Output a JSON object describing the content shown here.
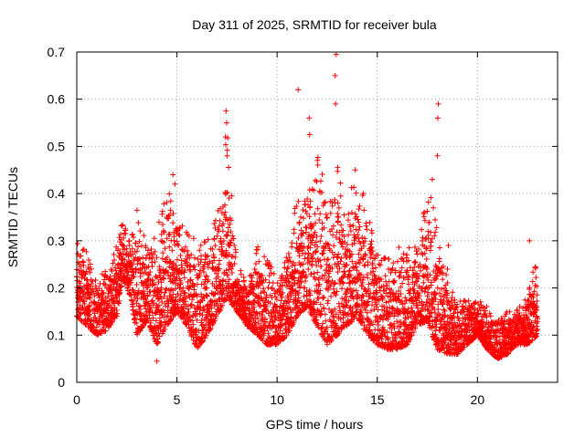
{
  "chart_data": {
    "type": "scatter",
    "title": "Day 311 of 2025, SRMTID for receiver bula",
    "xlabel": "GPS time / hours",
    "ylabel": "SRMTID / TECUs",
    "xlim": [
      0,
      24
    ],
    "ylim": [
      0,
      0.7
    ],
    "xticks": [
      0,
      5,
      10,
      15,
      20
    ],
    "yticks": [
      0,
      0.1,
      0.2,
      0.3,
      0.4,
      0.5,
      0.6,
      0.7
    ],
    "xtick_labels": [
      "0",
      "5",
      "10",
      "15",
      "20"
    ],
    "ytick_labels": [
      "0",
      "0.1",
      "0.2",
      "0.3",
      "0.4",
      "0.5",
      "0.6",
      "0.7"
    ],
    "grid": true,
    "marker": "plus",
    "color": "#ff0000",
    "envelope": {
      "hours": [
        0,
        0.5,
        1,
        1.5,
        2,
        2.3,
        2.7,
        3,
        3.5,
        4,
        4.5,
        5,
        5.5,
        6,
        6.5,
        7,
        7.5,
        8,
        8.5,
        9,
        9.5,
        10,
        10.5,
        11,
        11.5,
        12,
        12.5,
        13,
        13.5,
        14,
        14.5,
        15,
        15.5,
        16,
        16.5,
        17,
        17.5,
        18,
        18.5,
        19,
        19.5,
        20,
        20.5,
        21,
        21.5,
        22,
        22.5,
        23
      ],
      "min": [
        0.14,
        0.12,
        0.1,
        0.11,
        0.14,
        0.22,
        0.18,
        0.1,
        0.13,
        0.08,
        0.12,
        0.15,
        0.12,
        0.07,
        0.1,
        0.14,
        0.18,
        0.15,
        0.12,
        0.1,
        0.08,
        0.08,
        0.1,
        0.14,
        0.16,
        0.12,
        0.08,
        0.1,
        0.12,
        0.14,
        0.1,
        0.08,
        0.07,
        0.07,
        0.08,
        0.12,
        0.13,
        0.07,
        0.06,
        0.06,
        0.08,
        0.1,
        0.07,
        0.05,
        0.06,
        0.08,
        0.08,
        0.1
      ],
      "max": [
        0.3,
        0.28,
        0.22,
        0.24,
        0.3,
        0.36,
        0.3,
        0.38,
        0.3,
        0.32,
        0.42,
        0.36,
        0.32,
        0.3,
        0.32,
        0.36,
        0.55,
        0.26,
        0.22,
        0.3,
        0.28,
        0.22,
        0.28,
        0.4,
        0.42,
        0.5,
        0.4,
        0.5,
        0.4,
        0.44,
        0.36,
        0.3,
        0.28,
        0.3,
        0.28,
        0.32,
        0.42,
        0.35,
        0.22,
        0.18,
        0.18,
        0.18,
        0.16,
        0.14,
        0.16,
        0.16,
        0.2,
        0.27
      ]
    },
    "highlights": [
      {
        "x": 12.95,
        "y": 0.695
      },
      {
        "x": 12.9,
        "y": 0.65
      },
      {
        "x": 12.92,
        "y": 0.59
      },
      {
        "x": 11.05,
        "y": 0.62
      },
      {
        "x": 11.6,
        "y": 0.56
      },
      {
        "x": 11.62,
        "y": 0.525
      },
      {
        "x": 7.45,
        "y": 0.575
      },
      {
        "x": 7.48,
        "y": 0.55
      },
      {
        "x": 7.42,
        "y": 0.52
      },
      {
        "x": 7.5,
        "y": 0.48
      },
      {
        "x": 18.05,
        "y": 0.59
      },
      {
        "x": 18.02,
        "y": 0.56
      },
      {
        "x": 18.0,
        "y": 0.48
      },
      {
        "x": 17.75,
        "y": 0.43
      },
      {
        "x": 13.9,
        "y": 0.45
      },
      {
        "x": 14.3,
        "y": 0.4
      },
      {
        "x": 4.8,
        "y": 0.44
      },
      {
        "x": 4.9,
        "y": 0.42
      },
      {
        "x": 4.0,
        "y": 0.045
      },
      {
        "x": 18.55,
        "y": 0.29
      },
      {
        "x": 18.5,
        "y": 0.24
      },
      {
        "x": 22.6,
        "y": 0.3
      }
    ]
  }
}
